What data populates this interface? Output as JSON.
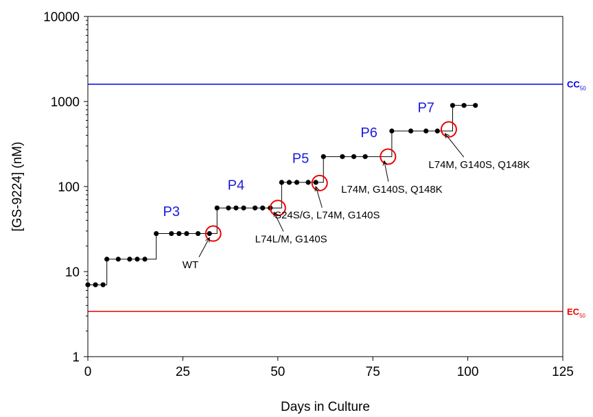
{
  "chart_data": {
    "type": "line",
    "xlabel": "Days in Culture",
    "ylabel": "[GS-9224] (nM)",
    "x_ticks": [
      0,
      25,
      50,
      75,
      100,
      125
    ],
    "y_ticks": [
      1,
      10,
      100,
      1000,
      10000
    ],
    "y_tick_labels": [
      "1",
      "10",
      "100",
      "1000",
      "10000"
    ],
    "xlim": [
      0,
      125
    ],
    "ylim": [
      1,
      10000
    ],
    "y_scale": "log",
    "colors": {
      "data": "#000000",
      "cc50": "#0000ee",
      "ec50": "#ee0000",
      "circle": "#ee0000",
      "passage": "#1a1adc"
    },
    "series": [
      {
        "x": [
          0,
          2,
          4,
          5,
          8,
          11,
          13,
          15,
          18,
          22,
          24,
          26,
          29,
          32,
          34,
          37,
          39,
          41,
          44,
          46,
          48,
          51,
          53,
          55,
          58,
          60,
          62,
          67,
          70,
          73,
          80,
          85,
          89,
          92,
          96,
          99,
          102
        ],
        "y": [
          7,
          7,
          7,
          14,
          14,
          14,
          14,
          14,
          28,
          28,
          28,
          28,
          28,
          28,
          56,
          56,
          56,
          56,
          56,
          56,
          56,
          112,
          112,
          112,
          112,
          112,
          225,
          225,
          225,
          225,
          450,
          450,
          450,
          450,
          900,
          900,
          900
        ]
      }
    ],
    "ref_lines": [
      {
        "name": "CC",
        "sub": "50",
        "y": 1600
      },
      {
        "name": "EC",
        "sub": "50",
        "y": 3.4
      }
    ],
    "passages": [
      {
        "label": "P3",
        "x": 22,
        "y": 45
      },
      {
        "label": "P4",
        "x": 39,
        "y": 92
      },
      {
        "label": "P5",
        "x": 56,
        "y": 190
      },
      {
        "label": "P6",
        "x": 74,
        "y": 380
      },
      {
        "label": "P7",
        "x": 89,
        "y": 750
      }
    ],
    "circles": [
      {
        "x": 33,
        "y": 28
      },
      {
        "x": 50,
        "y": 56
      },
      {
        "x": 61,
        "y": 110
      },
      {
        "x": 79,
        "y": 225
      },
      {
        "x": 95,
        "y": 470
      }
    ],
    "annotations": [
      {
        "text": "WT",
        "x": 27,
        "y": 11,
        "arrow_to": {
          "x": 32,
          "y": 25
        }
      },
      {
        "text": "L74L/M, G140S",
        "x": 53.5,
        "y": 22,
        "arrow_to": {
          "x": 49,
          "y": 50
        }
      },
      {
        "text": "S24S/G, L74M, G140S",
        "x": 63,
        "y": 42,
        "arrow_to": {
          "x": 60,
          "y": 100
        }
      },
      {
        "text": "L74M, G140S, Q148K",
        "x": 80,
        "y": 85,
        "arrow_to": {
          "x": 78,
          "y": 200
        }
      },
      {
        "text": "L74M, G140S, Q148K",
        "x": 103,
        "y": 165,
        "arrow_to": {
          "x": 94,
          "y": 420
        }
      }
    ]
  }
}
